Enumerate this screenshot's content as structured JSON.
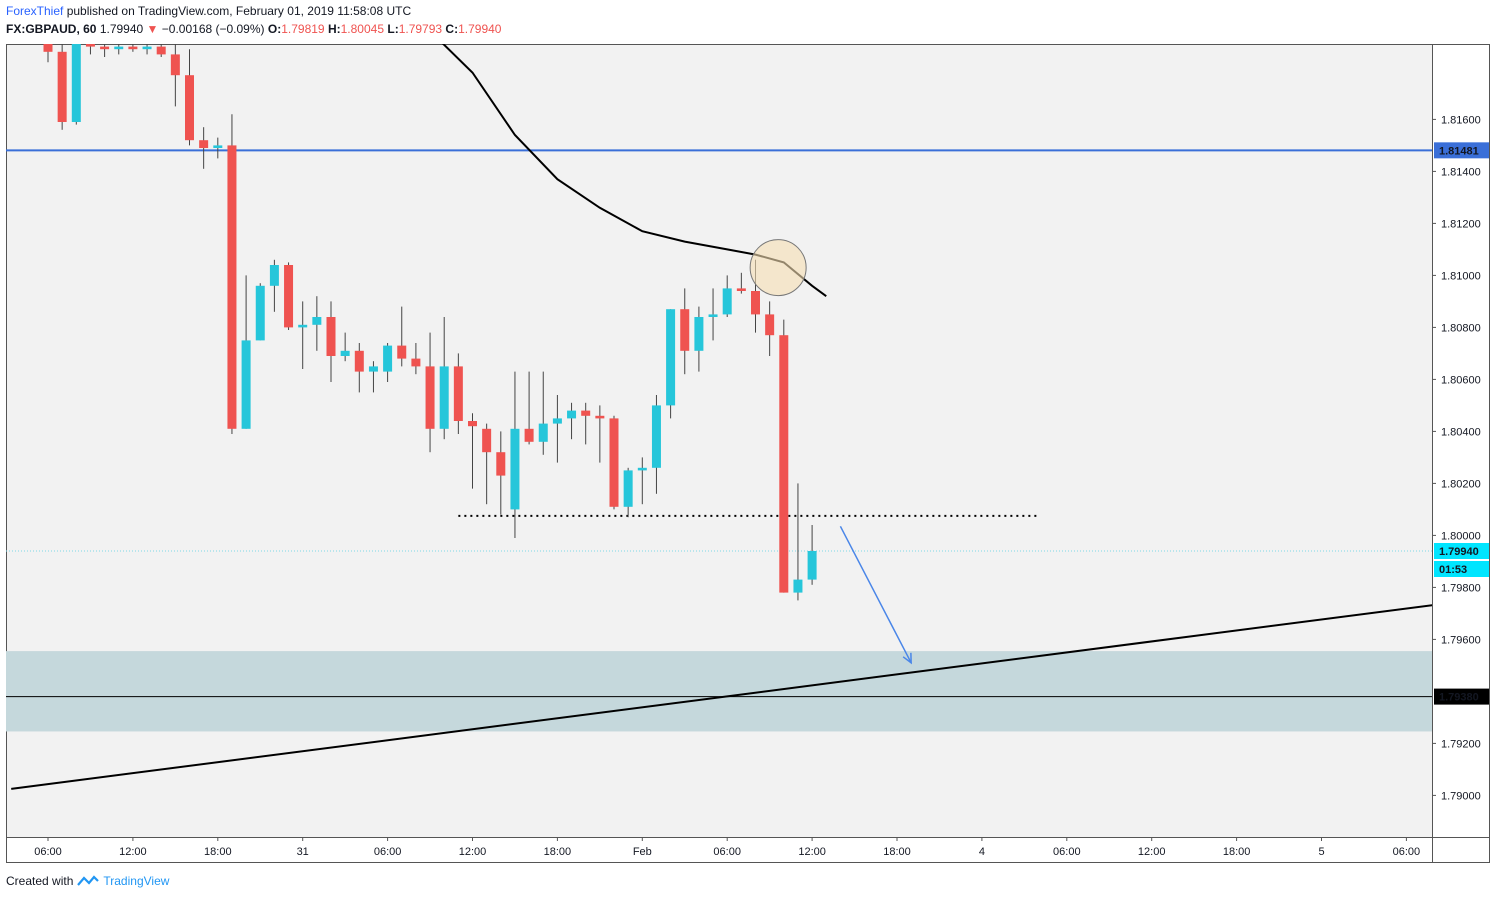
{
  "header": {
    "author": "ForexThief",
    "published_text": " published on TradingView.com, February 01, 2019 11:58:08 UTC",
    "symbol": "FX:GBPAUD, 60",
    "last": "1.79940",
    "change": "−0.00168 (−0.09%)",
    "o_label": "O:",
    "o_value": "1.79819",
    "h_label": "H:",
    "h_value": "1.80045",
    "l_label": "L:",
    "l_value": "1.79793",
    "c_label": "C:",
    "c_value": "1.79940"
  },
  "footer": {
    "created_text": "Created with",
    "brand": "TradingView"
  },
  "price_badges": {
    "resistance": "1.81481",
    "current": "1.79940",
    "countdown": "01:53",
    "support": "1.79380"
  },
  "colors": {
    "up": "#26c6da",
    "down": "#ef5350",
    "resistance_line": "#3a6fd8",
    "zone": "#c5d8dc",
    "ma": "#000000",
    "arrow": "#4a86e8",
    "circle": "#f5deb3"
  },
  "chart_data": {
    "type": "candlestick",
    "symbol": "FX:GBPAUD",
    "interval": "60",
    "ylim": [
      1.7884,
      1.8189
    ],
    "y_ticks": [
      "1.81600",
      "1.81400",
      "1.81200",
      "1.81000",
      "1.80800",
      "1.80600",
      "1.80400",
      "1.80200",
      "1.80000",
      "1.79800",
      "1.79600",
      "1.79200",
      "1.79000"
    ],
    "x_ticks": [
      "06:00",
      "12:00",
      "18:00",
      "31",
      "06:00",
      "12:00",
      "18:00",
      "Feb",
      "06:00",
      "12:00",
      "18:00",
      "4",
      "06:00",
      "12:00",
      "18:00",
      "5",
      "06:00"
    ],
    "candles": [
      {
        "o": 1.8189,
        "h": 1.8195,
        "l": 1.8182,
        "c": 1.8186
      },
      {
        "o": 1.8186,
        "h": 1.8189,
        "l": 1.8156,
        "c": 1.8159
      },
      {
        "o": 1.8159,
        "h": 1.82,
        "l": 1.8158,
        "c": 1.8194
      },
      {
        "o": 1.8189,
        "h": 1.8192,
        "l": 1.8185,
        "c": 1.8188
      },
      {
        "o": 1.8188,
        "h": 1.8191,
        "l": 1.8184,
        "c": 1.8187
      },
      {
        "o": 1.8187,
        "h": 1.819,
        "l": 1.8185,
        "c": 1.8188
      },
      {
        "o": 1.8188,
        "h": 1.819,
        "l": 1.8186,
        "c": 1.8187
      },
      {
        "o": 1.8187,
        "h": 1.819,
        "l": 1.8185,
        "c": 1.8188
      },
      {
        "o": 1.8188,
        "h": 1.8191,
        "l": 1.8184,
        "c": 1.8185
      },
      {
        "o": 1.8185,
        "h": 1.819,
        "l": 1.8165,
        "c": 1.8177
      },
      {
        "o": 1.8177,
        "h": 1.8187,
        "l": 1.815,
        "c": 1.8152
      },
      {
        "o": 1.8152,
        "h": 1.8157,
        "l": 1.8141,
        "c": 1.8149
      },
      {
        "o": 1.8149,
        "h": 1.8153,
        "l": 1.8145,
        "c": 1.815
      },
      {
        "o": 1.815,
        "h": 1.8162,
        "l": 1.8039,
        "c": 1.8041
      },
      {
        "o": 1.8041,
        "h": 1.81,
        "l": 1.8041,
        "c": 1.8075
      },
      {
        "o": 1.8075,
        "h": 1.8097,
        "l": 1.8075,
        "c": 1.8096
      },
      {
        "o": 1.8096,
        "h": 1.8106,
        "l": 1.8086,
        "c": 1.8104
      },
      {
        "o": 1.8104,
        "h": 1.8105,
        "l": 1.8079,
        "c": 1.808
      },
      {
        "o": 1.808,
        "h": 1.809,
        "l": 1.8064,
        "c": 1.8081
      },
      {
        "o": 1.8081,
        "h": 1.8092,
        "l": 1.8071,
        "c": 1.8084
      },
      {
        "o": 1.8084,
        "h": 1.809,
        "l": 1.8059,
        "c": 1.8069
      },
      {
        "o": 1.8069,
        "h": 1.8078,
        "l": 1.8067,
        "c": 1.8071
      },
      {
        "o": 1.8071,
        "h": 1.8074,
        "l": 1.8055,
        "c": 1.8063
      },
      {
        "o": 1.8063,
        "h": 1.8067,
        "l": 1.8055,
        "c": 1.8065
      },
      {
        "o": 1.8063,
        "h": 1.8074,
        "l": 1.8059,
        "c": 1.8073
      },
      {
        "o": 1.8073,
        "h": 1.8088,
        "l": 1.8065,
        "c": 1.8068
      },
      {
        "o": 1.8068,
        "h": 1.8074,
        "l": 1.8062,
        "c": 1.8065
      },
      {
        "o": 1.8065,
        "h": 1.8078,
        "l": 1.8032,
        "c": 1.8041
      },
      {
        "o": 1.8041,
        "h": 1.8084,
        "l": 1.8037,
        "c": 1.8065
      },
      {
        "o": 1.8065,
        "h": 1.807,
        "l": 1.8039,
        "c": 1.8044
      },
      {
        "o": 1.8044,
        "h": 1.8047,
        "l": 1.8018,
        "c": 1.8042
      },
      {
        "o": 1.8041,
        "h": 1.8043,
        "l": 1.8012,
        "c": 1.8032
      },
      {
        "o": 1.8032,
        "h": 1.804,
        "l": 1.8008,
        "c": 1.8023
      },
      {
        "o": 1.801,
        "h": 1.8063,
        "l": 1.7999,
        "c": 1.8041
      },
      {
        "o": 1.8041,
        "h": 1.8063,
        "l": 1.8035,
        "c": 1.8036
      },
      {
        "o": 1.8036,
        "h": 1.8063,
        "l": 1.8031,
        "c": 1.8043
      },
      {
        "o": 1.8043,
        "h": 1.8054,
        "l": 1.8028,
        "c": 1.8045
      },
      {
        "o": 1.8045,
        "h": 1.8051,
        "l": 1.8037,
        "c": 1.8048
      },
      {
        "o": 1.8048,
        "h": 1.8051,
        "l": 1.8035,
        "c": 1.8046
      },
      {
        "o": 1.8046,
        "h": 1.805,
        "l": 1.8028,
        "c": 1.8045
      },
      {
        "o": 1.8045,
        "h": 1.8046,
        "l": 1.801,
        "c": 1.8011
      },
      {
        "o": 1.8011,
        "h": 1.8026,
        "l": 1.8007,
        "c": 1.8025
      },
      {
        "o": 1.8025,
        "h": 1.803,
        "l": 1.8012,
        "c": 1.8026
      },
      {
        "o": 1.8026,
        "h": 1.8054,
        "l": 1.8016,
        "c": 1.805
      },
      {
        "o": 1.805,
        "h": 1.8087,
        "l": 1.8045,
        "c": 1.8087
      },
      {
        "o": 1.8087,
        "h": 1.8095,
        "l": 1.8062,
        "c": 1.8071
      },
      {
        "o": 1.8071,
        "h": 1.8088,
        "l": 1.8063,
        "c": 1.8084
      },
      {
        "o": 1.8084,
        "h": 1.8095,
        "l": 1.8075,
        "c": 1.8085
      },
      {
        "o": 1.8085,
        "h": 1.81,
        "l": 1.8084,
        "c": 1.8095
      },
      {
        "o": 1.8095,
        "h": 1.8101,
        "l": 1.8093,
        "c": 1.8094
      },
      {
        "o": 1.8094,
        "h": 1.8106,
        "l": 1.8078,
        "c": 1.8085
      },
      {
        "o": 1.8085,
        "h": 1.809,
        "l": 1.8069,
        "c": 1.8077
      },
      {
        "o": 1.8077,
        "h": 1.8083,
        "l": 1.7978,
        "c": 1.7978
      },
      {
        "o": 1.7978,
        "h": 1.802,
        "l": 1.7975,
        "c": 1.7983
      },
      {
        "o": 1.7983,
        "h": 1.8004,
        "l": 1.7981,
        "c": 1.7994
      }
    ],
    "moving_average": [
      {
        "i": 27,
        "v": 1.8194
      },
      {
        "i": 30,
        "v": 1.8178
      },
      {
        "i": 33,
        "v": 1.8154
      },
      {
        "i": 36,
        "v": 1.8137
      },
      {
        "i": 39,
        "v": 1.8126
      },
      {
        "i": 42,
        "v": 1.8117
      },
      {
        "i": 45,
        "v": 1.8113
      },
      {
        "i": 48,
        "v": 1.811
      },
      {
        "i": 50,
        "v": 1.8108
      },
      {
        "i": 52,
        "v": 1.8105
      },
      {
        "i": 54,
        "v": 1.8096
      },
      {
        "i": 55,
        "v": 1.8092
      }
    ],
    "resistance_level": 1.81481,
    "support_level": 1.7938,
    "support_zone": [
      1.79246,
      1.79555
    ],
    "dotted_level": {
      "value": 1.80075,
      "from_i": 29,
      "to_i": 70
    },
    "trendline": {
      "from": {
        "i": -2.6,
        "v": 1.79025
      },
      "to": {
        "i": 101,
        "v": 1.79754
      }
    },
    "arrow": {
      "from": {
        "i": 56,
        "v": 1.80035
      },
      "to": {
        "i": 61,
        "v": 1.7951
      }
    },
    "circle": {
      "i": 51.6,
      "v": 1.8103
    }
  }
}
